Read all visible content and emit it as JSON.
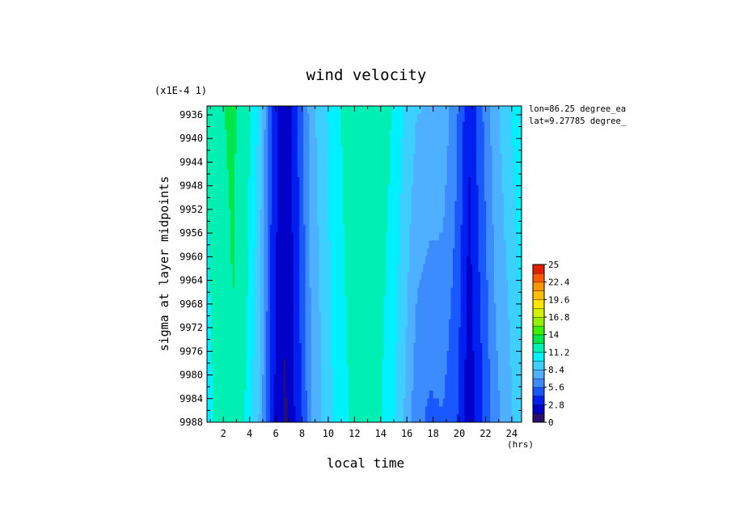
{
  "chart_data": {
    "type": "heatmap",
    "title": "wind velocity",
    "xlabel": "local time",
    "xunits": "(hrs)",
    "ylabel": "sigma at layer midpoints",
    "yscale_note": "(x1E-4 1)",
    "annotations": [
      "lon=86.25 degree_ea",
      "lat=9.27785 degree_"
    ],
    "xlim": [
      0.75,
      24.75
    ],
    "ylim_top": 9934.5,
    "ylim_bottom": 9988,
    "x_ticks": [
      2,
      4,
      6,
      8,
      10,
      12,
      14,
      16,
      18,
      20,
      22,
      24
    ],
    "x_tick_labels": [
      "2",
      "4",
      "6",
      "8",
      "10",
      "12",
      "14",
      "16",
      "18",
      "20",
      "22",
      "24"
    ],
    "y_ticks": [
      9936,
      9940,
      9944,
      9948,
      9952,
      9956,
      9960,
      9964,
      9968,
      9972,
      9976,
      9980,
      9984,
      9988
    ],
    "y_tick_labels": [
      "9936",
      "9940",
      "9944",
      "9948",
      "9952",
      "9956",
      "9960",
      "9964",
      "9968",
      "9972",
      "9976",
      "9980",
      "9984",
      "9988"
    ],
    "x": [
      0.75,
      1.75,
      2.75,
      3.75,
      4.75,
      5.75,
      6.75,
      7.75,
      8.75,
      9.75,
      10.75,
      11.75,
      12.75,
      13.75,
      14.75,
      15.75,
      16.75,
      17.75,
      18.75,
      19.75,
      20.75,
      21.75,
      22.75,
      23.75,
      24.75
    ],
    "y": [
      9934.5,
      9988
    ],
    "values": [
      [
        11.5,
        12.5,
        12.8,
        12.0,
        9.5,
        3.8,
        1.5,
        4.5,
        8.0,
        9.5,
        11.0,
        12.0,
        12.3,
        12.0,
        11.3,
        9.8,
        8.5,
        8.3,
        8.0,
        6.0,
        3.0,
        5.5,
        8.0,
        9.5,
        11.0
      ],
      [
        10.5,
        12.0,
        12.5,
        11.0,
        8.3,
        3.0,
        1.2,
        3.5,
        7.0,
        8.8,
        10.5,
        11.3,
        12.0,
        11.5,
        10.5,
        8.5,
        6.0,
        5.3,
        5.5,
        4.5,
        1.8,
        4.0,
        6.5,
        7.8,
        9.5
      ]
    ],
    "colorbar": {
      "min": 0,
      "max": 25,
      "levels": [
        0,
        1.4,
        2.8,
        4.2,
        5.6,
        7.0,
        8.4,
        9.8,
        11.2,
        12.6,
        14,
        15.4,
        16.8,
        18.2,
        19.6,
        21.0,
        22.4,
        23.7,
        25
      ],
      "tick_labels": [
        "25",
        "22.4",
        "19.6",
        "16.8",
        "14",
        "11.2",
        "8.4",
        "5.6",
        "2.8",
        "0"
      ],
      "colors": [
        "#2a0f6e",
        "#0000c8",
        "#0020f0",
        "#1a58ff",
        "#3c8cff",
        "#4fb0ff",
        "#3ccfff",
        "#00f0ff",
        "#00f0b4",
        "#00e64b",
        "#3cf000",
        "#96f000",
        "#d2f000",
        "#ffe600",
        "#ffbe00",
        "#ff9600",
        "#ff5a00",
        "#e61e00"
      ]
    }
  }
}
